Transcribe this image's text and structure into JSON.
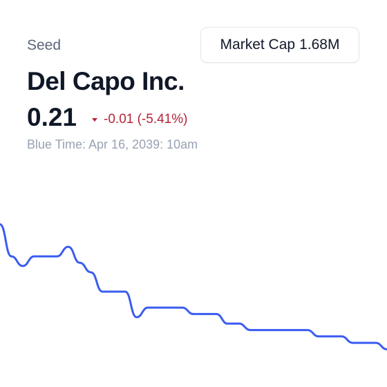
{
  "stock": {
    "category": "Seed",
    "name": "Del Capo Inc.",
    "price": "0.21",
    "change": "-0.01 (-5.41%)",
    "timestamp": "Blue Time: Apr 16, 2039: 10am"
  },
  "market_cap": {
    "label": "Market Cap",
    "value": "1.68M"
  },
  "colors": {
    "line": "#3a5cf0",
    "negative": "#b42336"
  },
  "chart_data": {
    "type": "line",
    "series": [
      {
        "values": [
          0.236,
          0.226,
          0.223,
          0.226,
          0.226,
          0.226,
          0.229,
          0.224,
          0.221,
          0.215,
          0.215,
          0.215,
          0.207,
          0.21,
          0.21,
          0.21,
          0.21,
          0.208,
          0.208,
          0.208,
          0.205,
          0.205,
          0.203,
          0.203,
          0.203,
          0.203,
          0.203,
          0.203,
          0.201,
          0.201,
          0.201,
          0.199,
          0.199,
          0.199,
          0.197
        ]
      }
    ]
  }
}
